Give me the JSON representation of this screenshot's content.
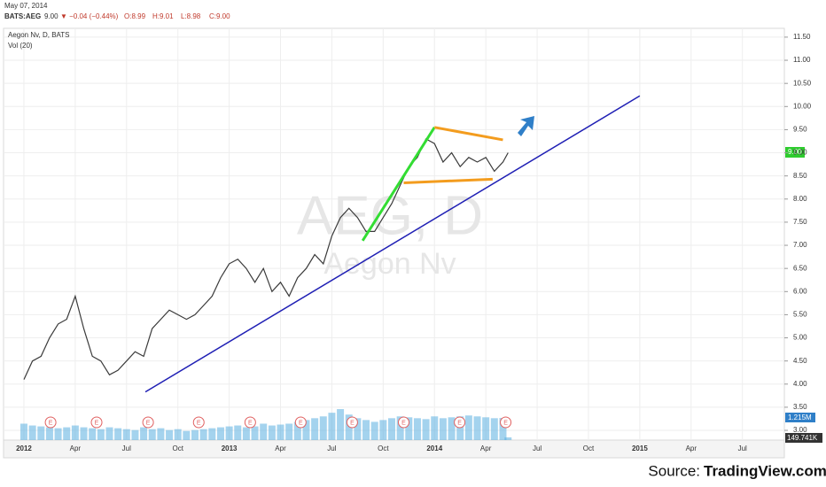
{
  "chart_data": {
    "type": "line",
    "date": "May 07, 2014",
    "symbol": "BATS:AEG",
    "last": "9.00",
    "change": "▼ −0.04 (−0.44%)",
    "quote": [
      "O:8.99",
      "H:9.01",
      "L:8.98",
      "C:9.00"
    ],
    "legend_title": "Aegon Nv, D, BATS",
    "volume_title": "Vol (20)",
    "watermark": "AEG, D",
    "watermark_sub": "Aegon Nv",
    "source_label": "Source:",
    "source": "TradingView.com",
    "price_tag": "9.00",
    "volume_tags": [
      "1.215M",
      "149.741K"
    ],
    "earnings_label": "E",
    "earnings_x": [
      1.56,
      4.25,
      7.26,
      10.22,
      13.23,
      16.18,
      19.19,
      22.2,
      25.47,
      28.16
    ],
    "xlim": [
      -1.19,
      44.45
    ],
    "xticks": [
      {
        "value": 0,
        "label": "2012"
      },
      {
        "value": 3,
        "label": "Apr"
      },
      {
        "value": 6,
        "label": "Jul"
      },
      {
        "value": 9,
        "label": "Oct"
      },
      {
        "value": 12,
        "label": "2013"
      },
      {
        "value": 15,
        "label": "Apr"
      },
      {
        "value": 18,
        "label": "Jul"
      },
      {
        "value": 21,
        "label": "Oct"
      },
      {
        "value": 24,
        "label": "2014"
      },
      {
        "value": 27,
        "label": "Apr"
      },
      {
        "value": 30,
        "label": "Jul"
      },
      {
        "value": 33,
        "label": "Oct"
      },
      {
        "value": 36,
        "label": "2015"
      },
      {
        "value": 39,
        "label": "Apr"
      },
      {
        "value": 42,
        "label": "Jul"
      }
    ],
    "ylim": [
      2.79,
      11.69
    ],
    "yticks": [
      {
        "value": 3,
        "label": "3.00"
      },
      {
        "value": 3.5,
        "label": "3.50"
      },
      {
        "value": 4,
        "label": "4.00"
      },
      {
        "value": 4.5,
        "label": "4.50"
      },
      {
        "value": 5,
        "label": "5.00"
      },
      {
        "value": 5.5,
        "label": "5.50"
      },
      {
        "value": 6,
        "label": "6.00"
      },
      {
        "value": 6.5,
        "label": "6.50"
      },
      {
        "value": 7,
        "label": "7.00"
      },
      {
        "value": 7.5,
        "label": "7.50"
      },
      {
        "value": 8,
        "label": "8.00"
      },
      {
        "value": 8.5,
        "label": "8.50"
      },
      {
        "value": 9,
        "label": "9.00"
      },
      {
        "value": 9.5,
        "label": "9.50"
      },
      {
        "value": 10,
        "label": "10.00"
      },
      {
        "value": 10.5,
        "label": "10.50"
      },
      {
        "value": 11,
        "label": "11.00"
      },
      {
        "value": 11.5,
        "label": "11.50"
      }
    ],
    "y2lim": [
      0,
      22600000
    ],
    "grid": true,
    "series": [
      {
        "color": "#3a3a3a",
        "x": [
          0,
          0.5,
          1,
          1.5,
          2,
          2.5,
          3,
          3.5,
          4,
          4.5,
          5,
          5.5,
          6,
          6.5,
          7,
          7.5,
          8,
          8.5,
          9,
          9.5,
          10,
          10.5,
          11,
          11.5,
          12,
          12.5,
          13,
          13.5,
          14,
          14.5,
          15,
          15.5,
          16,
          16.5,
          17,
          17.5,
          18,
          18.5,
          19,
          19.5,
          20,
          20.5,
          21,
          21.5,
          22,
          22.5,
          23,
          23.5,
          24,
          24.5,
          25,
          25.5,
          26,
          26.5,
          27,
          27.5,
          28,
          28.3
        ],
        "values": [
          4.1,
          4.5,
          4.6,
          5.0,
          5.3,
          5.4,
          5.9,
          5.2,
          4.6,
          4.5,
          4.2,
          4.3,
          4.5,
          4.7,
          4.6,
          5.2,
          5.4,
          5.6,
          5.5,
          5.4,
          5.5,
          5.7,
          5.9,
          6.3,
          6.6,
          6.7,
          6.5,
          6.2,
          6.5,
          6.0,
          6.2,
          5.9,
          6.3,
          6.5,
          6.8,
          6.6,
          7.2,
          7.6,
          7.8,
          7.6,
          7.3,
          7.3,
          7.6,
          7.9,
          8.3,
          8.7,
          8.9,
          9.3,
          9.2,
          8.8,
          9.0,
          8.7,
          8.9,
          8.8,
          8.9,
          8.6,
          8.8,
          9.0
        ]
      },
      {
        "color": "#5aaee0",
        "axis": "y2",
        "x": [
          0,
          0.5,
          1,
          1.5,
          2,
          2.5,
          3,
          3.5,
          4,
          4.5,
          5,
          5.5,
          6,
          6.5,
          7,
          7.5,
          8,
          8.5,
          9,
          9.5,
          10,
          10.5,
          11,
          11.5,
          12,
          12.5,
          13,
          13.5,
          14,
          14.5,
          15,
          15.5,
          16,
          16.5,
          17,
          17.5,
          18,
          18.5,
          19,
          19.5,
          20,
          20.5,
          21,
          21.5,
          22,
          22.5,
          23,
          23.5,
          24,
          24.5,
          25,
          25.5,
          26,
          26.5,
          27,
          27.5,
          28,
          28.3
        ],
        "values": [
          900000,
          800000,
          750000,
          700000,
          650000,
          700000,
          800000,
          700000,
          650000,
          600000,
          700000,
          650000,
          600000,
          550000,
          700000,
          600000,
          650000,
          550000,
          600000,
          500000,
          550000,
          600000,
          650000,
          700000,
          750000,
          800000,
          700000,
          750000,
          900000,
          800000,
          850000,
          900000,
          1000000,
          1100000,
          1200000,
          1300000,
          1500000,
          1700000,
          1400000,
          1200000,
          1100000,
          1000000,
          1100000,
          1200000,
          1300000,
          1250000,
          1200000,
          1150000,
          1300000,
          1200000,
          1250000,
          1300000,
          1350000,
          1300000,
          1250000,
          1200000,
          1215000,
          149741
        ]
      }
    ],
    "drawings": [
      {
        "color": "#1f1fb4",
        "points": [
          [
            7.1,
            3.83
          ],
          [
            36,
            10.23
          ]
        ]
      },
      {
        "color": "#33dd33",
        "points": [
          [
            19.8,
            7.1
          ],
          [
            24.0,
            9.55
          ]
        ]
      },
      {
        "color": "#f39c1e",
        "points": [
          [
            24.0,
            9.55
          ],
          [
            28.0,
            9.28
          ]
        ]
      },
      {
        "color": "#f39c1e",
        "points": [
          [
            22.2,
            8.35
          ],
          [
            27.4,
            8.43
          ]
        ]
      }
    ]
  }
}
